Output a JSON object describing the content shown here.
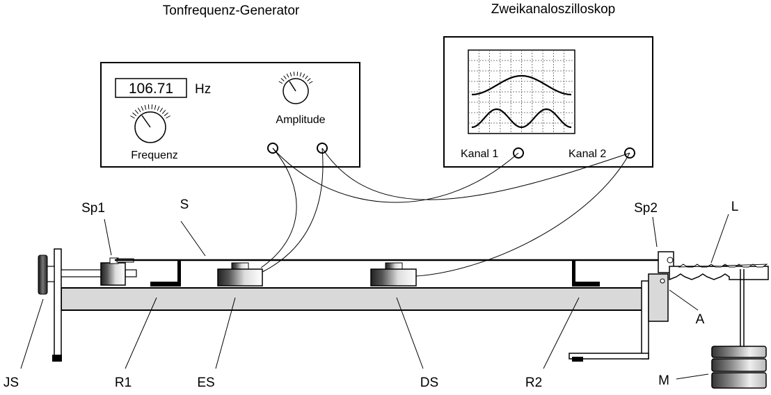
{
  "titles": {
    "generator": "Tonfrequenz-Generator",
    "oscilloscope": "Zweikanaloszilloskop"
  },
  "generator": {
    "frequency_display": "106.71",
    "frequency_unit": "Hz",
    "frequency_knob_label": "Frequenz",
    "amplitude_knob_label": "Amplitude"
  },
  "oscilloscope": {
    "channel1_label": "Kanal 1",
    "channel2_label": "Kanal 2"
  },
  "parts": {
    "sp1": "Sp1",
    "s": "S",
    "sp2": "Sp2",
    "l": "L",
    "a": "A",
    "js": "JS",
    "r1": "R1",
    "es": "ES",
    "ds": "DS",
    "r2": "R2",
    "m": "M"
  },
  "colors": {
    "line": "#000000",
    "rail": "#d9d9d9",
    "grid": "#555555"
  }
}
